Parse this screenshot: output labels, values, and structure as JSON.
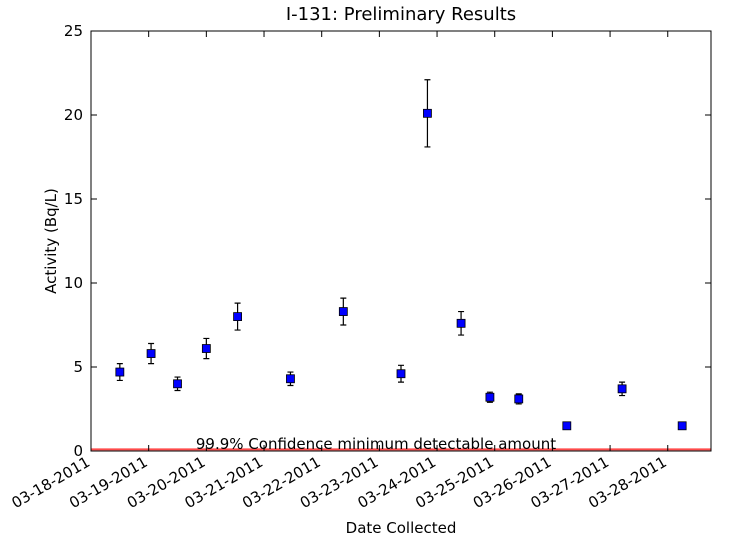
{
  "chart_data": {
    "type": "errorbar",
    "title": "I-131: Preliminary Results",
    "x_label": "Date Collected",
    "y_label": "Activity (Bq/L)",
    "x": [
      "2011-03-18T12:00",
      "2011-03-19T01:00",
      "2011-03-19T12:00",
      "2011-03-20T00:00",
      "2011-03-20T13:00",
      "2011-03-21T11:00",
      "2011-03-22T09:00",
      "2011-03-23T09:00",
      "2011-03-23T20:00",
      "2011-03-24T10:00",
      "2011-03-24T22:00",
      "2011-03-25T10:00",
      "2011-03-26T06:00",
      "2011-03-27T05:00",
      "2011-03-28T06:00"
    ],
    "values": [
      4.7,
      5.8,
      4.0,
      6.1,
      8.0,
      4.3,
      8.3,
      4.6,
      20.1,
      7.6,
      3.2,
      3.1,
      1.5,
      3.7,
      1.5
    ],
    "errors": [
      0.5,
      0.6,
      0.4,
      0.6,
      0.8,
      0.4,
      0.8,
      0.5,
      2.0,
      0.7,
      0.3,
      0.3,
      0.1,
      0.4,
      0.1
    ],
    "color": "#0000ff",
    "xlim": [
      "2011-03-18T00:00",
      "2011-03-28T18:00"
    ],
    "xticks": [
      {
        "value": "2011-03-18",
        "label": "03-18-2011"
      },
      {
        "value": "2011-03-19",
        "label": "03-19-2011"
      },
      {
        "value": "2011-03-20",
        "label": "03-20-2011"
      },
      {
        "value": "2011-03-21",
        "label": "03-21-2011"
      },
      {
        "value": "2011-03-22",
        "label": "03-22-2011"
      },
      {
        "value": "2011-03-23",
        "label": "03-23-2011"
      },
      {
        "value": "2011-03-24",
        "label": "03-24-2011"
      },
      {
        "value": "2011-03-25",
        "label": "03-25-2011"
      },
      {
        "value": "2011-03-26",
        "label": "03-26-2011"
      },
      {
        "value": "2011-03-27",
        "label": "03-27-2011"
      },
      {
        "value": "2011-03-28",
        "label": "03-28-2011"
      }
    ],
    "ylim": [
      0,
      25
    ],
    "yticks": [
      0,
      5,
      10,
      15,
      20,
      25
    ],
    "threshold": {
      "value": 0.1,
      "label": "99.9% Confidence minimum detectable amount",
      "color": "#ff0000"
    }
  }
}
